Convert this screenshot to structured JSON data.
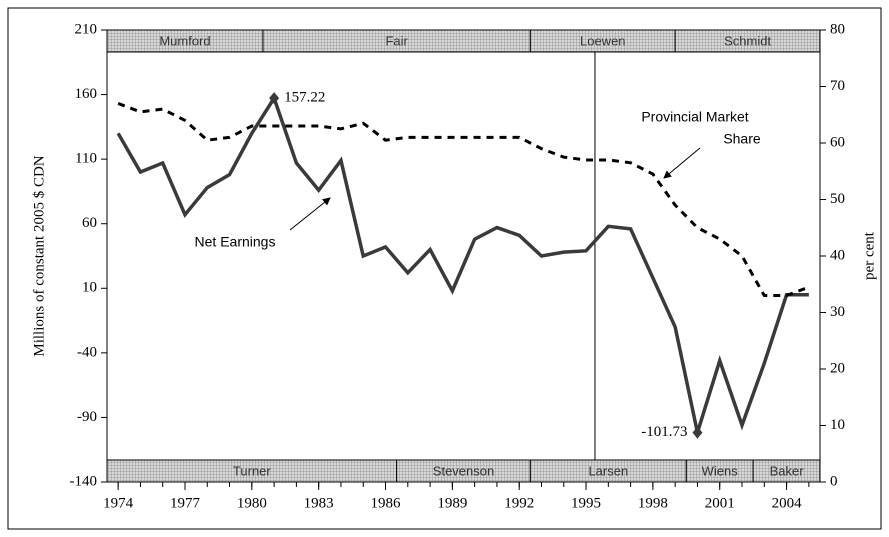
{
  "chart_data": {
    "type": "line",
    "y_label": "Millions of constant 2005 $ CDN",
    "y2_label": "per cent",
    "x": [
      1974,
      1975,
      1976,
      1977,
      1978,
      1979,
      1980,
      1981,
      1982,
      1983,
      1984,
      1985,
      1986,
      1987,
      1988,
      1989,
      1990,
      1991,
      1992,
      1993,
      1994,
      1995,
      1996,
      1997,
      1998,
      1999,
      2000,
      2001,
      2002,
      2003,
      2004,
      2005
    ],
    "xlim": [
      1973.5,
      2005.5
    ],
    "xticks": [
      1974,
      1977,
      1980,
      1983,
      1986,
      1989,
      1992,
      1995,
      1998,
      2001,
      2004
    ],
    "ylim": [
      -140,
      210
    ],
    "yticks": [
      -140,
      -90,
      -40,
      10,
      60,
      110,
      160,
      210
    ],
    "y2lim": [
      0,
      80
    ],
    "y2ticks": [
      0,
      10,
      20,
      30,
      40,
      50,
      60,
      70,
      80
    ],
    "series": [
      {
        "name": "Net Earnings",
        "color": "#3a3a3a",
        "style": "solid",
        "values": [
          130,
          100,
          107,
          67,
          88,
          98,
          130,
          157.22,
          107,
          86,
          109,
          35,
          42,
          22,
          40,
          8,
          48,
          57,
          51,
          35,
          38,
          39,
          58,
          56,
          18,
          -20,
          -101.73,
          -46,
          -96,
          -48,
          5,
          5
        ],
        "value_labels": [
          null,
          null,
          null,
          null,
          null,
          null,
          null,
          "157.22",
          null,
          null,
          null,
          null,
          null,
          null,
          null,
          null,
          null,
          null,
          null,
          null,
          null,
          null,
          null,
          null,
          null,
          null,
          "-101.73",
          null,
          null,
          null,
          null,
          null
        ]
      },
      {
        "name": "Provincial Market Share",
        "color": "#000000",
        "style": "dashed",
        "axis": "y2",
        "values": [
          67,
          65.5,
          66,
          64,
          60.5,
          61,
          63,
          63,
          63,
          63,
          62.5,
          63.5,
          60.5,
          61,
          61,
          61,
          61,
          61,
          61,
          59,
          57.5,
          57,
          57,
          56.5,
          54.5,
          49,
          45,
          43,
          40,
          33,
          33,
          34.5
        ]
      }
    ],
    "annotations": [
      {
        "text": "Net Earnings"
      },
      {
        "lines": [
          "Provincial Market",
          "Share"
        ]
      }
    ],
    "reference_line": {
      "x": 1995.4
    },
    "top_bands": [
      {
        "label": "Mumford",
        "start": 1973.5,
        "end": 1980.5
      },
      {
        "label": "Fair",
        "start": 1980.5,
        "end": 1992.5
      },
      {
        "label": "Loewen",
        "start": 1992.5,
        "end": 1999.0
      },
      {
        "label": "Schmidt",
        "start": 1999.0,
        "end": 2005.5
      }
    ],
    "bottom_bands": [
      {
        "label": "Turner",
        "start": 1973.5,
        "end": 1986.5
      },
      {
        "label": "Stevenson",
        "start": 1986.5,
        "end": 1992.5
      },
      {
        "label": "Larsen",
        "start": 1992.5,
        "end": 1999.5
      },
      {
        "label": "Wiens",
        "start": 1999.5,
        "end": 2002.5
      },
      {
        "label": "Baker",
        "start": 2002.5,
        "end": 2005.5
      }
    ]
  }
}
